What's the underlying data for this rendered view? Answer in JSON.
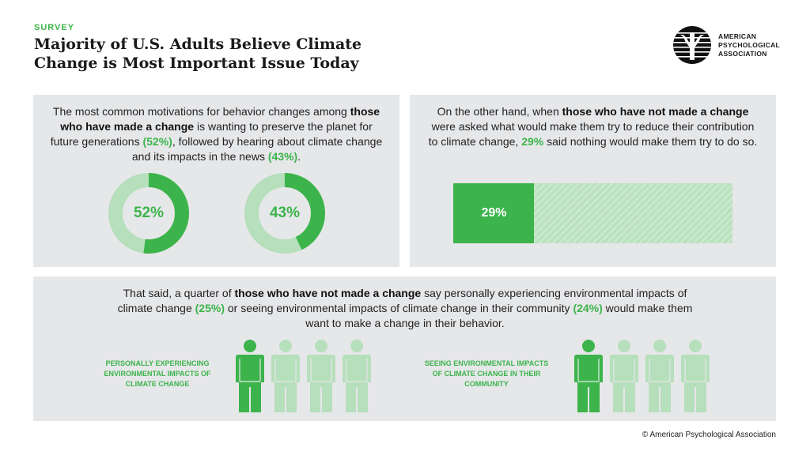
{
  "header": {
    "eyebrow": "SURVEY",
    "title": "Majority of U.S. Adults Believe Climate Change is Most Important Issue Today",
    "logo_text": "AMERICAN PSYCHOLOGICAL ASSOCIATION"
  },
  "panel1": {
    "t1": "The most common motivations for behavior changes among",
    "b1": "those who have made a change",
    "t2": " is wanting to preserve the planet for future generations ",
    "g1": "(52%)",
    "t3": ", followed by hearing about climate change and its impacts in the news ",
    "g2": "(43%)",
    "t4": "."
  },
  "panel2": {
    "t1": "On the other hand, when ",
    "b1": "those who have not made a change",
    "t2": " were asked what would make them try to reduce their contribution to climate change, ",
    "g1": "29%",
    "t3": " said nothing would make them try to do so."
  },
  "panel3": {
    "t1": "That said, a quarter of ",
    "b1": "those who have not made a change",
    "t2": " say personally experiencing environmental impacts of climate change ",
    "g1": "(25%)",
    "t3": " or seeing environmental impacts of climate change in their community ",
    "g2": "(24%)",
    "t4": " would make them want to make a change in their behavior.",
    "group1_label": "PERSONALLY EXPERIENCING ENVIRONMENTAL IMPACTS OF CLIMATE CHANGE",
    "group2_label": "SEEING ENVIRONMENTAL IMPACTS OF CLIMATE CHANGE IN THEIR COMMUNITY"
  },
  "footer": {
    "copyright": "© American Psychological Association"
  },
  "colors": {
    "green": "#3cb44b",
    "light_green": "#b6dfbc",
    "panel": "#e6e7e9"
  },
  "chart_data": [
    {
      "type": "pie",
      "subtype": "donut",
      "values": [
        52,
        48
      ],
      "label": "52%"
    },
    {
      "type": "pie",
      "subtype": "donut",
      "values": [
        43,
        57
      ],
      "label": "43%"
    },
    {
      "type": "bar",
      "subtype": "progress",
      "value": 29,
      "max": 100,
      "label": "29%"
    },
    {
      "type": "pictogram",
      "filled": 1,
      "total": 4,
      "label": "PERSONALLY EXPERIENCING ENVIRONMENTAL IMPACTS OF CLIMATE CHANGE"
    },
    {
      "type": "pictogram",
      "filled": 1,
      "total": 4,
      "label": "SEEING ENVIRONMENTAL IMPACTS OF CLIMATE CHANGE IN THEIR COMMUNITY"
    }
  ]
}
